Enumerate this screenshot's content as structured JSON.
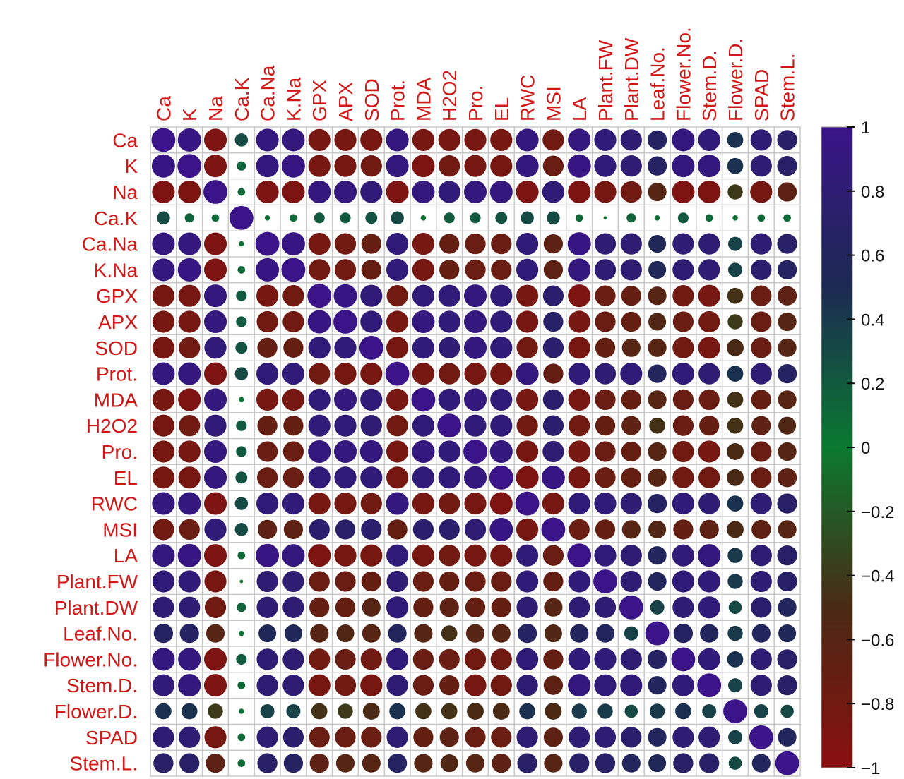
{
  "chart_data": {
    "type": "heatmap",
    "subtype": "correlogram-circles",
    "variables": [
      "Ca",
      "K",
      "Na",
      "Ca.K",
      "Ca.Na",
      "K.Na",
      "GPX",
      "APX",
      "SOD",
      "Prot.",
      "MDA",
      "H2O2",
      "Pro.",
      "EL",
      "RWC",
      "MSI",
      "LA",
      "Plant.FW",
      "Plant.DW",
      "Leaf.No.",
      "Flower.No.",
      "Stem.D.",
      "Flower.D.",
      "SPAD",
      "Stem.L."
    ],
    "matrix": [
      [
        1,
        0.95,
        -0.9,
        0.3,
        0.9,
        0.9,
        -0.85,
        -0.85,
        -0.85,
        0.9,
        -0.85,
        -0.85,
        -0.85,
        -0.85,
        0.9,
        -0.8,
        0.9,
        0.85,
        0.8,
        0.65,
        0.9,
        0.85,
        0.45,
        0.8,
        0.7
      ],
      [
        0.95,
        1,
        -0.9,
        0.15,
        0.9,
        0.95,
        -0.85,
        -0.85,
        -0.8,
        0.9,
        -0.9,
        -0.8,
        -0.85,
        -0.85,
        0.9,
        -0.75,
        0.95,
        0.85,
        0.8,
        0.65,
        0.9,
        0.9,
        0.45,
        0.8,
        0.7
      ],
      [
        -0.9,
        -0.9,
        1,
        0.1,
        -0.9,
        -0.9,
        0.9,
        0.9,
        0.85,
        -0.9,
        0.9,
        0.85,
        0.9,
        0.9,
        -0.9,
        0.85,
        -0.9,
        -0.85,
        -0.8,
        -0.6,
        -0.9,
        -0.9,
        -0.4,
        -0.85,
        -0.65
      ],
      [
        0.3,
        0.15,
        0.1,
        1,
        0.05,
        0.1,
        0.2,
        0.2,
        0.25,
        0.3,
        0.05,
        0.2,
        0.2,
        0.25,
        0.3,
        0.3,
        0.1,
        0.02,
        0.15,
        0.05,
        0.2,
        0.1,
        0.05,
        0.1,
        0.1
      ],
      [
        0.9,
        0.9,
        -0.9,
        0.05,
        1,
        0.95,
        -0.85,
        -0.8,
        -0.7,
        0.85,
        -0.85,
        -0.7,
        -0.75,
        -0.75,
        0.85,
        -0.65,
        0.95,
        0.8,
        0.8,
        0.55,
        0.8,
        0.8,
        0.35,
        0.8,
        0.7
      ],
      [
        0.9,
        0.95,
        -0.9,
        0.1,
        0.95,
        1,
        -0.8,
        -0.8,
        -0.7,
        0.85,
        -0.85,
        -0.7,
        -0.75,
        -0.75,
        0.85,
        -0.65,
        0.9,
        0.8,
        0.8,
        0.55,
        0.8,
        0.8,
        0.35,
        0.75,
        0.65
      ],
      [
        -0.85,
        -0.85,
        0.9,
        0.2,
        -0.85,
        -0.8,
        1,
        0.95,
        0.85,
        -0.8,
        0.85,
        0.85,
        0.9,
        0.85,
        -0.85,
        0.75,
        -0.9,
        -0.75,
        -0.7,
        -0.6,
        -0.8,
        -0.85,
        -0.45,
        -0.75,
        -0.65
      ],
      [
        -0.85,
        -0.85,
        0.9,
        0.2,
        -0.8,
        -0.8,
        0.95,
        1,
        0.85,
        -0.85,
        0.9,
        0.85,
        0.9,
        0.85,
        -0.85,
        0.7,
        -0.85,
        -0.75,
        -0.7,
        -0.55,
        -0.75,
        -0.8,
        -0.4,
        -0.75,
        -0.6
      ],
      [
        -0.85,
        -0.8,
        0.85,
        0.25,
        -0.7,
        -0.7,
        0.85,
        0.85,
        1,
        -0.85,
        0.85,
        0.8,
        0.9,
        0.85,
        -0.8,
        0.75,
        -0.85,
        -0.7,
        -0.6,
        -0.6,
        -0.8,
        -0.85,
        -0.5,
        -0.75,
        -0.6
      ],
      [
        0.9,
        0.9,
        -0.9,
        0.3,
        0.85,
        0.85,
        -0.8,
        -0.85,
        -0.85,
        1,
        -0.85,
        -0.8,
        -0.85,
        -0.85,
        0.9,
        -0.7,
        0.85,
        0.8,
        0.85,
        0.6,
        0.85,
        0.8,
        0.45,
        0.8,
        0.65
      ],
      [
        -0.85,
        -0.9,
        0.9,
        0.05,
        -0.85,
        -0.85,
        0.85,
        0.9,
        0.85,
        -0.85,
        1,
        0.85,
        0.9,
        0.85,
        -0.85,
        0.75,
        -0.85,
        -0.75,
        -0.7,
        -0.6,
        -0.75,
        -0.75,
        -0.45,
        -0.7,
        -0.6
      ],
      [
        -0.85,
        -0.8,
        0.85,
        0.2,
        -0.7,
        -0.7,
        0.85,
        0.85,
        0.8,
        -0.8,
        0.85,
        1,
        0.85,
        0.85,
        -0.8,
        0.75,
        -0.8,
        -0.7,
        -0.65,
        -0.45,
        -0.75,
        -0.7,
        -0.45,
        -0.65,
        -0.55
      ],
      [
        -0.85,
        -0.85,
        0.9,
        0.2,
        -0.75,
        -0.75,
        0.9,
        0.9,
        0.9,
        -0.85,
        0.9,
        0.85,
        1,
        0.9,
        -0.85,
        0.8,
        -0.85,
        -0.75,
        -0.7,
        -0.6,
        -0.8,
        -0.85,
        -0.5,
        -0.75,
        -0.6
      ],
      [
        -0.85,
        -0.85,
        0.9,
        0.25,
        -0.75,
        -0.75,
        0.85,
        0.85,
        0.85,
        -0.85,
        0.85,
        0.85,
        0.9,
        1,
        -0.9,
        0.95,
        -0.85,
        -0.75,
        -0.7,
        -0.6,
        -0.8,
        -0.8,
        -0.5,
        -0.75,
        -0.65
      ],
      [
        0.9,
        0.9,
        -0.9,
        0.3,
        0.85,
        0.85,
        -0.85,
        -0.85,
        -0.8,
        0.9,
        -0.85,
        -0.8,
        -0.85,
        -0.9,
        1,
        -0.85,
        0.85,
        0.85,
        0.8,
        0.65,
        0.85,
        0.8,
        0.45,
        0.8,
        0.7
      ],
      [
        -0.8,
        -0.75,
        0.85,
        0.3,
        -0.65,
        -0.65,
        0.75,
        0.7,
        0.75,
        -0.7,
        0.75,
        0.75,
        0.8,
        0.95,
        -0.85,
        1,
        -0.75,
        -0.7,
        -0.6,
        -0.55,
        -0.7,
        -0.65,
        -0.5,
        -0.65,
        -0.6
      ],
      [
        0.9,
        0.95,
        -0.9,
        0.1,
        0.95,
        0.9,
        -0.9,
        -0.85,
        -0.85,
        0.85,
        -0.85,
        -0.8,
        -0.85,
        -0.85,
        0.85,
        -0.75,
        1,
        0.85,
        0.8,
        0.6,
        0.85,
        0.9,
        0.4,
        0.8,
        0.7
      ],
      [
        0.85,
        0.85,
        -0.85,
        0.02,
        0.8,
        0.8,
        -0.75,
        -0.75,
        -0.7,
        0.8,
        -0.75,
        -0.7,
        -0.75,
        -0.75,
        0.85,
        -0.7,
        0.85,
        1,
        0.8,
        0.6,
        0.85,
        0.85,
        0.4,
        0.8,
        0.7
      ],
      [
        0.8,
        0.8,
        -0.8,
        0.15,
        0.8,
        0.8,
        -0.7,
        -0.7,
        -0.6,
        0.85,
        -0.7,
        -0.65,
        -0.7,
        -0.7,
        0.8,
        -0.6,
        0.8,
        0.8,
        1,
        0.35,
        0.8,
        0.85,
        0.3,
        0.75,
        0.6
      ],
      [
        0.65,
        0.65,
        -0.6,
        0.05,
        0.55,
        0.55,
        -0.6,
        -0.55,
        -0.6,
        0.6,
        -0.6,
        -0.45,
        -0.6,
        -0.6,
        0.65,
        -0.55,
        0.6,
        0.6,
        0.35,
        1,
        0.65,
        0.6,
        0.4,
        0.6,
        0.55
      ],
      [
        0.9,
        0.9,
        -0.9,
        0.2,
        0.8,
        0.8,
        -0.8,
        -0.75,
        -0.8,
        0.85,
        -0.75,
        -0.75,
        -0.8,
        -0.8,
        0.85,
        -0.7,
        0.85,
        0.85,
        0.8,
        0.65,
        1,
        0.85,
        0.45,
        0.8,
        0.7
      ],
      [
        0.85,
        0.9,
        -0.9,
        0.1,
        0.8,
        0.8,
        -0.85,
        -0.8,
        -0.85,
        0.8,
        -0.75,
        -0.7,
        -0.85,
        -0.8,
        0.8,
        -0.65,
        0.9,
        0.85,
        0.85,
        0.6,
        0.85,
        1,
        0.35,
        0.8,
        0.7
      ],
      [
        0.45,
        0.45,
        -0.4,
        0.05,
        0.35,
        0.35,
        -0.45,
        -0.4,
        -0.5,
        0.45,
        -0.45,
        -0.45,
        -0.5,
        -0.5,
        0.45,
        -0.5,
        0.4,
        0.4,
        0.3,
        0.4,
        0.45,
        0.35,
        1,
        0.35,
        0.3
      ],
      [
        0.8,
        0.8,
        -0.85,
        0.1,
        0.8,
        0.75,
        -0.75,
        -0.75,
        -0.75,
        0.8,
        -0.7,
        -0.65,
        -0.75,
        -0.75,
        0.8,
        -0.65,
        0.8,
        0.8,
        0.75,
        0.6,
        0.8,
        0.8,
        0.35,
        1,
        0.6
      ],
      [
        0.7,
        0.7,
        -0.65,
        0.1,
        0.7,
        0.65,
        -0.65,
        -0.6,
        -0.6,
        0.65,
        -0.6,
        -0.55,
        -0.6,
        -0.65,
        0.7,
        -0.6,
        0.7,
        0.7,
        0.6,
        0.55,
        0.7,
        0.7,
        0.3,
        0.6,
        1
      ]
    ],
    "value_range": [
      -1,
      1
    ],
    "colorbar_ticks": [
      "1",
      "0.8",
      "0.6",
      "0.4",
      "0.2",
      "0",
      "−0.2",
      "−0.4",
      "−0.6",
      "−0.8",
      "−1"
    ],
    "colorbar_values": [
      1,
      0.8,
      0.6,
      0.4,
      0.2,
      0,
      -0.2,
      -0.4,
      -0.6,
      -0.8,
      -1
    ],
    "colors": {
      "positive_high": "#3a1488",
      "mid_positive": "#1c2a52",
      "zero": "#0a7a30",
      "mid_negative": "#4a2a14",
      "negative_high": "#8a0f10",
      "label": "#d01818",
      "grid": "#c8c8c8"
    },
    "legend": "right"
  }
}
